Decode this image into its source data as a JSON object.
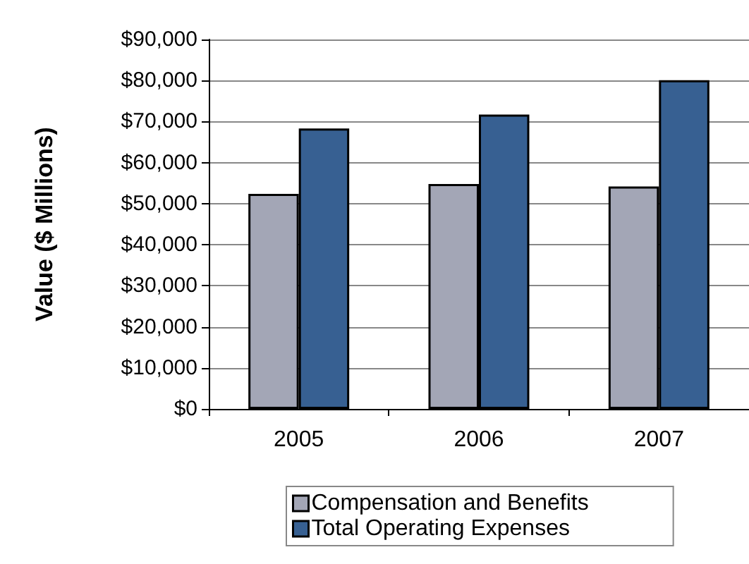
{
  "chart_data": {
    "type": "bar",
    "ylabel": "Value ($ Millions)",
    "categories": [
      "2005",
      "2006",
      "2007"
    ],
    "series": [
      {
        "name": "Compensation and Benefits",
        "color": "#a3a6b6",
        "values": [
          52400,
          54800,
          54200
        ]
      },
      {
        "name": "Total Operating Expenses",
        "color": "#376092",
        "values": [
          68300,
          71700,
          80100
        ]
      }
    ],
    "ylim": [
      0,
      90000
    ],
    "yticks": [
      {
        "value": 0,
        "label": "$0"
      },
      {
        "value": 10000,
        "label": "$10,000"
      },
      {
        "value": 20000,
        "label": "$20,000"
      },
      {
        "value": 30000,
        "label": "$30,000"
      },
      {
        "value": 40000,
        "label": "$40,000"
      },
      {
        "value": 50000,
        "label": "$50,000"
      },
      {
        "value": 60000,
        "label": "$60,000"
      },
      {
        "value": 70000,
        "label": "$70,000"
      },
      {
        "value": 80000,
        "label": "$80,000"
      },
      {
        "value": 90000,
        "label": "$90,000"
      }
    ],
    "grid": "y",
    "legend": "bottom"
  }
}
